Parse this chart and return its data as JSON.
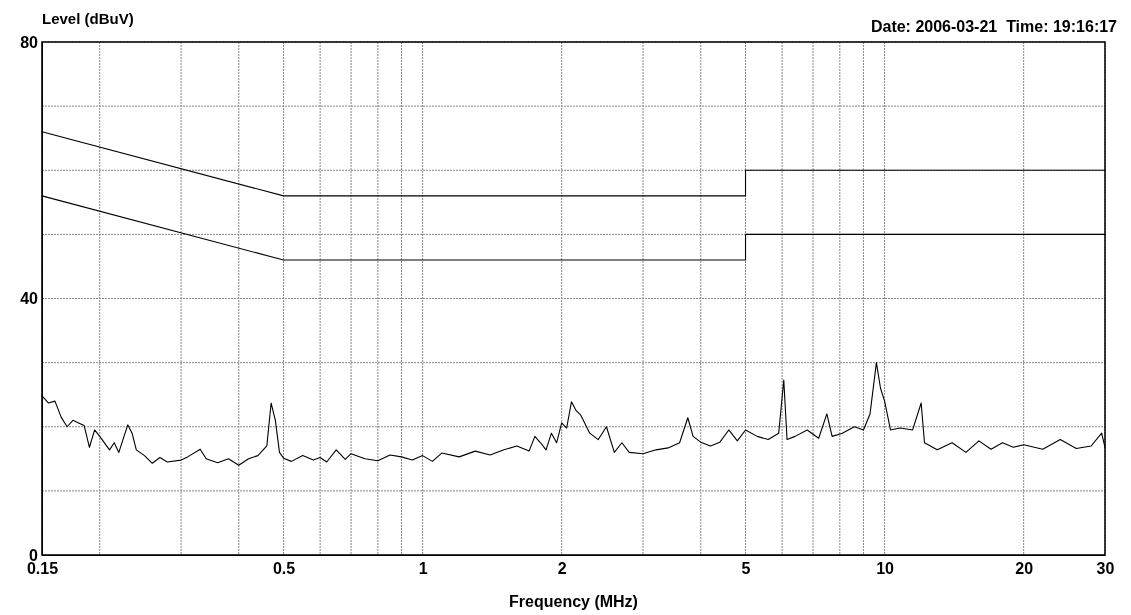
{
  "chart_data": {
    "type": "line",
    "ylabel": "Level (dBuV)",
    "xlabel": "Frequency (MHz)",
    "annotations": [
      "Date: 2006-03-21  Time: 19:16:17"
    ],
    "log": "x",
    "grid": true,
    "marker": "none",
    "line_style": "solid",
    "xlim": [
      0.15,
      30
    ],
    "ylim": [
      0,
      80
    ],
    "xticks": [
      0.15,
      {
        "value": 0.2,
        "label": null
      },
      {
        "value": 0.3,
        "label": null
      },
      {
        "value": 0.4,
        "label": null
      },
      0.5,
      {
        "value": 0.6,
        "label": null
      },
      {
        "value": 0.7,
        "label": null
      },
      {
        "value": 0.8,
        "label": null
      },
      {
        "value": 0.9,
        "label": null
      },
      1,
      2,
      {
        "value": 3,
        "label": null
      },
      {
        "value": 4,
        "label": null
      },
      5,
      {
        "value": 6,
        "label": null
      },
      {
        "value": 7,
        "label": null
      },
      {
        "value": 8,
        "label": null
      },
      {
        "value": 9,
        "label": null
      },
      10,
      20,
      30
    ],
    "yticks": [
      0,
      {
        "value": 10,
        "label": null
      },
      {
        "value": 20,
        "label": null
      },
      {
        "value": 30,
        "label": null
      },
      40,
      {
        "value": 50,
        "label": null
      },
      {
        "value": 60,
        "label": null
      },
      {
        "value": 70,
        "label": null
      },
      80
    ],
    "series": [
      {
        "color": "#000000",
        "x": [
          0.15,
          0.5,
          5,
          5,
          30
        ],
        "values": [
          66,
          56,
          56,
          60,
          60
        ]
      },
      {
        "color": "#000000",
        "x": [
          0.15,
          0.5,
          5,
          5,
          30
        ],
        "values": [
          56,
          46,
          46,
          50,
          50
        ]
      },
      {
        "color": "#000000",
        "x": [
          0.15,
          0.155,
          0.16,
          0.165,
          0.17,
          0.175,
          0.18,
          0.185,
          0.19,
          0.195,
          0.2,
          0.21,
          0.215,
          0.22,
          0.23,
          0.235,
          0.24,
          0.25,
          0.26,
          0.27,
          0.28,
          0.3,
          0.31,
          0.33,
          0.34,
          0.36,
          0.38,
          0.4,
          0.42,
          0.44,
          0.46,
          0.47,
          0.48,
          0.49,
          0.5,
          0.52,
          0.55,
          0.58,
          0.6,
          0.62,
          0.65,
          0.68,
          0.7,
          0.75,
          0.8,
          0.85,
          0.9,
          0.95,
          1.0,
          1.05,
          1.1,
          1.2,
          1.3,
          1.4,
          1.5,
          1.6,
          1.7,
          1.75,
          1.8,
          1.85,
          1.9,
          1.95,
          2.0,
          2.05,
          2.1,
          2.15,
          2.2,
          2.3,
          2.4,
          2.5,
          2.6,
          2.7,
          2.8,
          3.0,
          3.2,
          3.4,
          3.6,
          3.75,
          3.85,
          4.0,
          4.2,
          4.4,
          4.6,
          4.8,
          5.0,
          5.3,
          5.6,
          5.9,
          6.05,
          6.15,
          6.4,
          6.8,
          7.2,
          7.5,
          7.7,
          8.1,
          8.6,
          9.0,
          9.3,
          9.6,
          9.8,
          10.0,
          10.3,
          10.8,
          11.5,
          12.0,
          12.2,
          13,
          14,
          15,
          16,
          17,
          18,
          19,
          20,
          22,
          24,
          26,
          28,
          29.5,
          30
        ],
        "values": [
          24.8,
          23.7,
          24.0,
          21.5,
          20.0,
          21.0,
          20.6,
          20.2,
          16.8,
          19.5,
          18.5,
          16.4,
          17.5,
          16.0,
          20.3,
          19.0,
          16.4,
          15.5,
          14.3,
          15.2,
          14.5,
          14.8,
          15.3,
          16.5,
          15.0,
          14.4,
          15.0,
          14.0,
          15.0,
          15.5,
          17.0,
          23.7,
          21.0,
          16.0,
          15.1,
          14.6,
          15.5,
          14.8,
          15.2,
          14.5,
          16.4,
          14.9,
          15.8,
          15.0,
          14.7,
          15.6,
          15.3,
          14.8,
          15.5,
          14.6,
          15.9,
          15.3,
          16.2,
          15.6,
          16.4,
          17.0,
          16.2,
          18.5,
          17.5,
          16.4,
          19.0,
          17.5,
          20.6,
          19.8,
          23.9,
          22.5,
          21.8,
          19.0,
          18.0,
          20.0,
          16.0,
          17.5,
          16.0,
          15.8,
          16.4,
          16.7,
          17.5,
          21.4,
          18.5,
          17.6,
          17.0,
          17.6,
          19.5,
          17.8,
          19.5,
          18.5,
          18.0,
          19.0,
          27.3,
          18.0,
          18.5,
          19.5,
          18.2,
          22.0,
          18.5,
          19.0,
          20.0,
          19.5,
          22.0,
          30.0,
          26.0,
          24.0,
          19.5,
          19.8,
          19.5,
          23.7,
          17.5,
          16.4,
          17.5,
          16.0,
          17.8,
          16.5,
          17.5,
          16.8,
          17.2,
          16.5,
          18.0,
          16.6,
          17.0,
          19.0,
          16.8
        ]
      }
    ]
  }
}
